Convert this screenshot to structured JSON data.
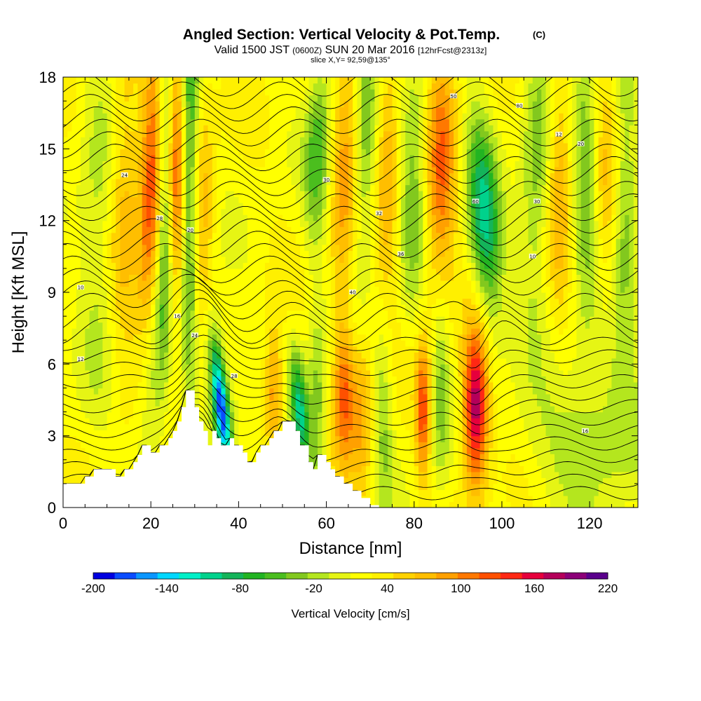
{
  "chart_data": {
    "type": "heatmap",
    "title": "Angled Section: Vertical Velocity & Pot.Temp.",
    "title_unit": "(C)",
    "subtitle_parts": [
      "Valid 1500 JST",
      "(0600Z)",
      "SUN 20 Mar 2016",
      "[12hrFcst@2313z]"
    ],
    "slice_label": "slice X,Y= 92,59@135°",
    "xlabel": "Distance [nm]",
    "ylabel": "Height [Kft MSL]",
    "xlim": [
      0,
      131
    ],
    "ylim": [
      0,
      18
    ],
    "x_ticks": [
      0,
      20,
      40,
      60,
      80,
      100,
      120
    ],
    "y_ticks": [
      0,
      3,
      6,
      9,
      12,
      15,
      18
    ],
    "colorbar": {
      "title": "Vertical Velocity [cm/s]",
      "min": -200,
      "max": 220,
      "labels": [
        "-200",
        "-140",
        "-80",
        "-20",
        "40",
        "100",
        "160",
        "220"
      ],
      "label_values": [
        -200,
        -140,
        -80,
        -20,
        40,
        100,
        160,
        220
      ],
      "colors": [
        "#0000e0",
        "#0a4cff",
        "#0a96ff",
        "#00d7ff",
        "#00f0c8",
        "#00d28c",
        "#14b45a",
        "#22b422",
        "#4bbe1e",
        "#82c81e",
        "#b4e61e",
        "#e6f514",
        "#ffff00",
        "#fff000",
        "#ffd200",
        "#ffbe00",
        "#ffa000",
        "#ff7800",
        "#ff5000",
        "#ff2814",
        "#e6003c",
        "#b4005a",
        "#8c0078",
        "#5a008c"
      ]
    },
    "terrain": [
      [
        0,
        1.0
      ],
      [
        5,
        1.0
      ],
      [
        5,
        1.3
      ],
      [
        7,
        1.3
      ],
      [
        7,
        1.6
      ],
      [
        12,
        1.6
      ],
      [
        12,
        1.3
      ],
      [
        14,
        1.3
      ],
      [
        14,
        1.6
      ],
      [
        16,
        1.6
      ],
      [
        16,
        1.9
      ],
      [
        17,
        1.9
      ],
      [
        17,
        2.2
      ],
      [
        18,
        2.2
      ],
      [
        18,
        2.6
      ],
      [
        20,
        2.6
      ],
      [
        20,
        2.3
      ],
      [
        22,
        2.3
      ],
      [
        22,
        2.6
      ],
      [
        24,
        2.6
      ],
      [
        24,
        2.9
      ],
      [
        25,
        2.9
      ],
      [
        25,
        3.2
      ],
      [
        26,
        3.2
      ],
      [
        26,
        3.6
      ],
      [
        27,
        3.6
      ],
      [
        27,
        4.2
      ],
      [
        28,
        4.2
      ],
      [
        28,
        4.9
      ],
      [
        30,
        4.9
      ],
      [
        30,
        4.2
      ],
      [
        31,
        4.2
      ],
      [
        31,
        3.6
      ],
      [
        32,
        3.6
      ],
      [
        32,
        3.2
      ],
      [
        33,
        3.2
      ],
      [
        33,
        2.6
      ],
      [
        34,
        2.6
      ],
      [
        34,
        3.2
      ],
      [
        35,
        3.2
      ],
      [
        35,
        2.9
      ],
      [
        36,
        2.9
      ],
      [
        36,
        2.6
      ],
      [
        38,
        2.6
      ],
      [
        38,
        2.9
      ],
      [
        39,
        2.9
      ],
      [
        39,
        2.6
      ],
      [
        41,
        2.6
      ],
      [
        41,
        2.3
      ],
      [
        42,
        2.3
      ],
      [
        42,
        1.9
      ],
      [
        44,
        1.9
      ],
      [
        44,
        2.3
      ],
      [
        45,
        2.3
      ],
      [
        45,
        2.6
      ],
      [
        47,
        2.6
      ],
      [
        47,
        2.9
      ],
      [
        48,
        2.9
      ],
      [
        48,
        3.2
      ],
      [
        50,
        3.2
      ],
      [
        50,
        3.6
      ],
      [
        53,
        3.6
      ],
      [
        53,
        3.2
      ],
      [
        54,
        3.2
      ],
      [
        54,
        2.6
      ],
      [
        56,
        2.6
      ],
      [
        56,
        1.9
      ],
      [
        57,
        1.9
      ],
      [
        57,
        1.6
      ],
      [
        58,
        1.6
      ],
      [
        58,
        2.2
      ],
      [
        60,
        2.2
      ],
      [
        60,
        1.9
      ],
      [
        61,
        1.9
      ],
      [
        61,
        1.6
      ],
      [
        62,
        1.6
      ],
      [
        62,
        1.3
      ],
      [
        64,
        1.3
      ],
      [
        64,
        1.0
      ],
      [
        66,
        1.0
      ],
      [
        66,
        0.7
      ],
      [
        68,
        0.7
      ],
      [
        68,
        0.4
      ],
      [
        70,
        0.4
      ],
      [
        70,
        0.1
      ],
      [
        72,
        0.1
      ],
      [
        72,
        0
      ],
      [
        131,
        0
      ]
    ],
    "features": [
      {
        "x": 20,
        "y": 13,
        "sx": 1.8,
        "sy": 5,
        "v": 100,
        "slope": 0.15
      },
      {
        "x": 20,
        "y": 5,
        "sx": 2.5,
        "sy": 3,
        "v": -60,
        "slope": 0.35
      },
      {
        "x": 23,
        "y": 14,
        "sx": 1.2,
        "sy": 5,
        "v": -70,
        "slope": 0
      },
      {
        "x": 26,
        "y": 14,
        "sx": 1.2,
        "sy": 5,
        "v": 80,
        "slope": 0
      },
      {
        "x": 29,
        "y": 13,
        "sx": 1.5,
        "sy": 6,
        "v": -110,
        "slope": 0.05
      },
      {
        "x": 31,
        "y": 12,
        "sx": 2.2,
        "sy": 4,
        "v": 70,
        "slope": 0
      },
      {
        "x": 36,
        "y": 4.2,
        "sx": 1.2,
        "sy": 1.8,
        "v": -180,
        "slope": -0.6
      },
      {
        "x": 35,
        "y": 6,
        "sx": 3,
        "sy": 3,
        "v": -40,
        "slope": -0.6
      },
      {
        "x": 48,
        "y": 4.8,
        "sx": 1.5,
        "sy": 1.8,
        "v": 80,
        "slope": 0
      },
      {
        "x": 54,
        "y": 4,
        "sx": 1.4,
        "sy": 1.8,
        "v": -120,
        "slope": -0.4
      },
      {
        "x": 58,
        "y": 4,
        "sx": 1.5,
        "sy": 3,
        "v": -60,
        "slope": 0
      },
      {
        "x": 64,
        "y": 5,
        "sx": 1.6,
        "sy": 2.2,
        "v": 90,
        "slope": 0
      },
      {
        "x": 68,
        "y": 4,
        "sx": 1.8,
        "sy": 2.5,
        "v": 60,
        "slope": 0
      },
      {
        "x": 73,
        "y": 4,
        "sx": 1.5,
        "sy": 3,
        "v": -50,
        "slope": 0
      },
      {
        "x": 82,
        "y": 4,
        "sx": 1.2,
        "sy": 2,
        "v": 100,
        "slope": 0
      },
      {
        "x": 86,
        "y": 5,
        "sx": 1.5,
        "sy": 3,
        "v": -60,
        "slope": 0
      },
      {
        "x": 94,
        "y": 4.2,
        "sx": 2,
        "sy": 2.3,
        "v": 170,
        "slope": 0
      },
      {
        "x": 96,
        "y": 12,
        "sx": 2.5,
        "sy": 3,
        "v": -120,
        "slope": -0.3
      },
      {
        "x": 58,
        "y": 15,
        "sx": 2,
        "sy": 3,
        "v": -70,
        "slope": 0.2
      },
      {
        "x": 64,
        "y": 14,
        "sx": 2,
        "sy": 4,
        "v": 60,
        "slope": 0.2
      },
      {
        "x": 69,
        "y": 15,
        "sx": 1.8,
        "sy": 4,
        "v": -60,
        "slope": 0.1
      },
      {
        "x": 74,
        "y": 14,
        "sx": 2,
        "sy": 4,
        "v": 60,
        "slope": 0
      },
      {
        "x": 80,
        "y": 14,
        "sx": 2.5,
        "sy": 4,
        "v": -60,
        "slope": 0.1
      },
      {
        "x": 86,
        "y": 14,
        "sx": 2.5,
        "sy": 4,
        "v": 90,
        "slope": 0.1
      },
      {
        "x": 108,
        "y": 14,
        "sx": 2.5,
        "sy": 4,
        "v": -60,
        "slope": 0.1
      },
      {
        "x": 113,
        "y": 14,
        "sx": 2,
        "sy": 4,
        "v": 60,
        "slope": 0
      },
      {
        "x": 119,
        "y": 14,
        "sx": 2,
        "sy": 4,
        "v": -60,
        "slope": 0
      },
      {
        "x": 124,
        "y": 13,
        "sx": 2,
        "sy": 4,
        "v": 40,
        "slope": 0
      },
      {
        "x": 128,
        "y": 13,
        "sx": 2,
        "sy": 4,
        "v": -60,
        "slope": 0
      },
      {
        "x": 8,
        "y": 12,
        "sx": 3,
        "sy": 5,
        "v": -40,
        "slope": 0
      },
      {
        "x": 14,
        "y": 13,
        "sx": 2.5,
        "sy": 5,
        "v": 50,
        "slope": 0
      },
      {
        "x": 114,
        "y": 3,
        "sx": 8,
        "sy": 2,
        "v": -30,
        "slope": 0
      },
      {
        "x": 125,
        "y": 4,
        "sx": 6,
        "sy": 3,
        "v": -35,
        "slope": 0
      }
    ],
    "contour_labels": [
      "10",
      "12",
      "16",
      "20",
      "24",
      "28",
      "30",
      "32",
      "36",
      "40",
      "50",
      "60",
      "80"
    ]
  }
}
